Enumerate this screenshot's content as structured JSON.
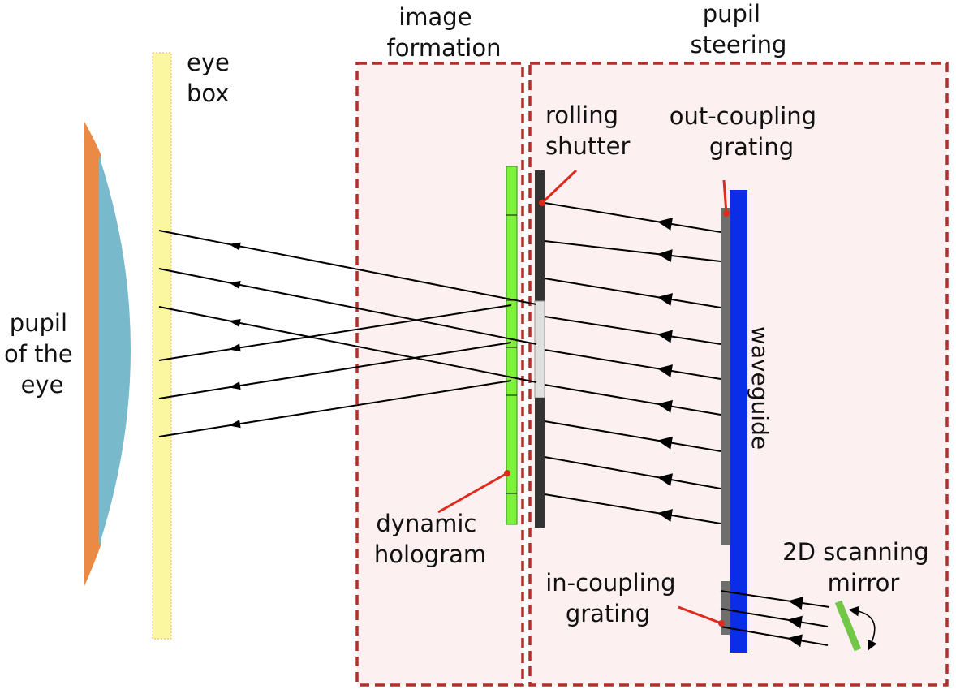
{
  "labels": {
    "eye_box": [
      "eye",
      "box"
    ],
    "pupil": [
      "pupil",
      "of the",
      "eye"
    ],
    "image_formation": [
      "image",
      "formation"
    ],
    "pupil_steering": [
      "pupil",
      "steering"
    ],
    "rolling_shutter": [
      "rolling",
      "shutter"
    ],
    "out_coupling": [
      "out-coupling",
      "grating"
    ],
    "waveguide": "waveguide",
    "dynamic_hologram": [
      "dynamic",
      "hologram"
    ],
    "in_coupling": [
      "in-coupling",
      "grating"
    ],
    "scanning_mirror": [
      "2D scanning",
      "mirror"
    ]
  },
  "colors": {
    "eye_orange": "#ea8a45",
    "eye_blue": "#78b9cc",
    "eye_box_fill": "#fbf7a0",
    "eye_box_stroke": "#e2b070",
    "region_border": "#b0302a",
    "region_fill": "#fdf0f0",
    "hologram_green": "#7ef23b",
    "shutter_dark": "#333333",
    "shutter_open": "#e0e0e0",
    "grating_gray": "#6e6e6e",
    "waveguide_blue": "#0a2de8",
    "mirror_green": "#72c846",
    "pointer_red": "#e02a1e",
    "ray_black": "#000000"
  },
  "icons": {
    "rotation": "curved-double-arrow-icon"
  }
}
